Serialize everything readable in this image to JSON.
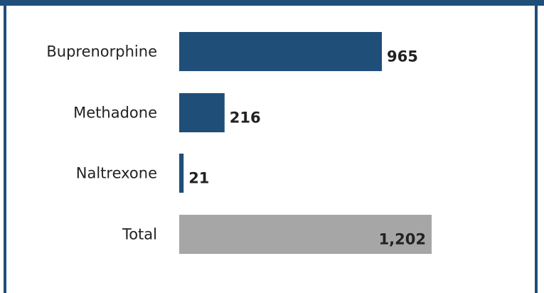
{
  "chart_data": {
    "type": "bar",
    "orientation": "horizontal",
    "categories": [
      "Buprenorphine",
      "Methadone",
      "Naltrexone",
      "Total"
    ],
    "values": [
      965,
      216,
      21,
      1202
    ],
    "value_labels": [
      "965",
      "216",
      "21",
      "1,202"
    ],
    "title": "",
    "xlabel": "",
    "ylabel": "",
    "xlim": [
      0,
      1202
    ],
    "grid": false,
    "legend": "none",
    "colors": {
      "series": "#1f4e79",
      "total": "#a6a6a6",
      "frame": "#1f4e79",
      "text": "#222222"
    }
  }
}
